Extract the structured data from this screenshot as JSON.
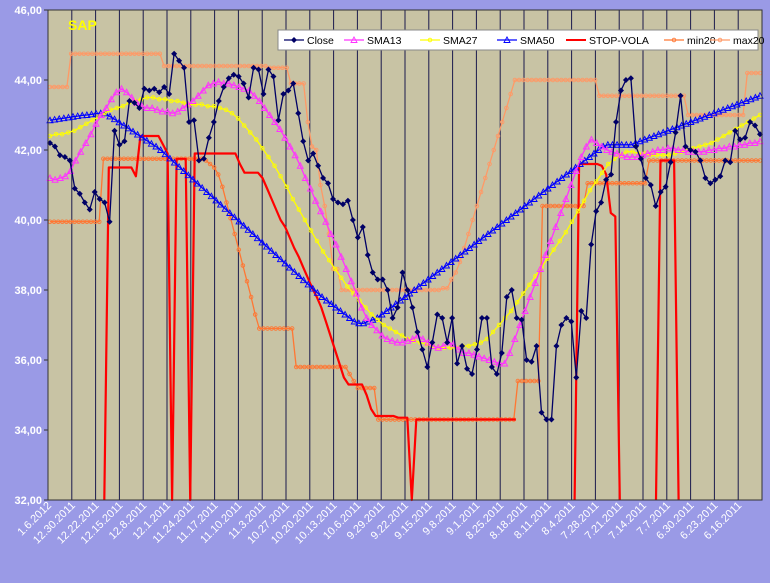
{
  "chart_data": {
    "type": "line",
    "title": "SAP",
    "ylim": [
      32,
      46
    ],
    "yticks": [
      32,
      34,
      36,
      38,
      40,
      42,
      44,
      46
    ],
    "ytick_labels": [
      "32,00",
      "34,00",
      "36,00",
      "38,00",
      "40,00",
      "42,00",
      "44,00",
      "46,00"
    ],
    "x_tick_labels": [
      "1.6.2012",
      "12.30.2011",
      "12.22.2011",
      "12.15.2011",
      "12.8.2011",
      "12.1.2011",
      "11.24.2011",
      "11.17.2011",
      "11.10.2011",
      "11.3.2011",
      "10.27.2011",
      "10.20.2011",
      "10.13.2011",
      "10.6.2011",
      "9.29.2011",
      "9.22.2011",
      "9.15.2011",
      "9.8.2011",
      "9.1.2011",
      "8.25.2011",
      "8.18.2011",
      "8.11.2011",
      "8.4.2011",
      "7.28.2011",
      "7.21.2011",
      "7.14.2011",
      "7.7.2011",
      "6.30.2011",
      "6.23.2011",
      "6.16.2011"
    ],
    "x_note": "x axis runs in reverse chronological order (newest date on the left); points are trading days indexed left to right",
    "grid": "vertical lines at each date tick",
    "legend_position": "top-right",
    "colors": {
      "plot_background": "#c8c3a4",
      "page_background": "#9a9ae6",
      "title": "#ffff00"
    },
    "series": [
      {
        "name": "Close",
        "color": "#000066",
        "marker": "diamond",
        "values": [
          42.2,
          42.1,
          41.85,
          41.8,
          41.7,
          40.9,
          40.75,
          40.5,
          40.3,
          40.8,
          40.6,
          40.5,
          39.95,
          42.55,
          42.15,
          42.25,
          43.4,
          43.35,
          43.2,
          43.75,
          43.7,
          43.75,
          43.65,
          43.8,
          43.6,
          44.75,
          44.55,
          44.35,
          42.8,
          42.85,
          41.7,
          41.75,
          42.35,
          42.8,
          43.4,
          43.8,
          44.05,
          44.15,
          44.1,
          43.9,
          43.5,
          44.35,
          44.3,
          43.6,
          44.3,
          44.1,
          42.85,
          43.6,
          43.7,
          43.9,
          43.05,
          42.25,
          41.7,
          41.9,
          41.55,
          41.2,
          41.05,
          40.6,
          40.5,
          40.45,
          40.55,
          40.0,
          39.5,
          39.8,
          39.0,
          38.5,
          38.3,
          38.3,
          38.0,
          37.2,
          37.5,
          38.5,
          38.0,
          37.5,
          36.8,
          36.3,
          35.8,
          36.5,
          37.3,
          37.2,
          36.5,
          37.2,
          35.9,
          36.4,
          35.75,
          35.6,
          36.3,
          37.2,
          37.2,
          35.8,
          35.6,
          36.2,
          37.8,
          38.0,
          37.2,
          37.15,
          36.0,
          35.95,
          36.4,
          34.5,
          34.3,
          34.3,
          36.4,
          37.0,
          37.2,
          37.1,
          35.5,
          37.4,
          37.2,
          39.3,
          40.25,
          40.5,
          41.15,
          41.3,
          42.8,
          43.7,
          44.0,
          44.05,
          42.1,
          41.75,
          41.2,
          41.0,
          40.4,
          40.8,
          40.95,
          41.65,
          42.5,
          43.55,
          42.1,
          42.0,
          41.95,
          41.7,
          41.2,
          41.05,
          41.15,
          41.25,
          41.7,
          41.65,
          42.55,
          42.3,
          42.35,
          42.8,
          42.7,
          42.45
        ]
      },
      {
        "name": "SMA13",
        "color": "#ff33ff",
        "marker": "triangle",
        "values": [
          41.2,
          41.15,
          41.2,
          41.25,
          41.4,
          41.7,
          41.95,
          42.2,
          42.45,
          42.75,
          43.0,
          43.2,
          43.45,
          43.65,
          43.75,
          43.65,
          43.5,
          43.35,
          43.25,
          43.2,
          43.2,
          43.15,
          43.1,
          43.1,
          43.05,
          43.1,
          43.2,
          43.3,
          43.4,
          43.55,
          43.7,
          43.85,
          43.9,
          43.95,
          43.9,
          43.9,
          43.85,
          43.8,
          43.75,
          43.7,
          43.55,
          43.4,
          43.2,
          43.0,
          42.8,
          42.6,
          42.35,
          42.1,
          41.85,
          41.55,
          41.2,
          40.9,
          40.55,
          40.25,
          39.95,
          39.6,
          39.3,
          38.95,
          38.6,
          38.25,
          37.9,
          37.5,
          37.2,
          37.0,
          36.85,
          36.7,
          36.6,
          36.55,
          36.5,
          36.5,
          36.55,
          36.6,
          36.7,
          36.6,
          36.5,
          36.4,
          36.35,
          36.4,
          36.5,
          36.45,
          36.3,
          36.2,
          36.2,
          36.15,
          36.1,
          36.05,
          36.0,
          35.95,
          35.9,
          35.9,
          36.2,
          36.6,
          37.0,
          37.4,
          37.8,
          38.2,
          38.6,
          39.0,
          39.4,
          39.8,
          40.2,
          40.6,
          41.0,
          41.4,
          41.8,
          42.1,
          42.3,
          42.2,
          42.1,
          42.0,
          41.95,
          41.9,
          41.85,
          41.8,
          41.8,
          41.8,
          41.85,
          41.9,
          41.95,
          42.0,
          42.0,
          42.05,
          42.05,
          42.0,
          42.0,
          41.95,
          41.95,
          41.95,
          41.95,
          42.0,
          42.0,
          42.05,
          42.05,
          42.1,
          42.1,
          42.15,
          42.15,
          42.2,
          42.2,
          42.25
        ]
      },
      {
        "name": "SMA27",
        "color": "#ffff00",
        "marker": "circle",
        "values": [
          42.4,
          42.45,
          42.45,
          42.5,
          42.55,
          42.65,
          42.75,
          42.85,
          42.95,
          43.05,
          43.15,
          43.2,
          43.25,
          43.35,
          43.4,
          43.45,
          43.5,
          43.5,
          43.45,
          43.45,
          43.4,
          43.4,
          43.35,
          43.3,
          43.3,
          43.3,
          43.25,
          43.25,
          43.2,
          43.15,
          43.05,
          42.9,
          42.7,
          42.5,
          42.3,
          42.05,
          41.8,
          41.55,
          41.25,
          40.95,
          40.6,
          40.3,
          40.0,
          39.7,
          39.4,
          39.1,
          38.85,
          38.6,
          38.35,
          38.1,
          37.9,
          37.7,
          37.5,
          37.3,
          37.15,
          37.0,
          36.9,
          36.8,
          36.7,
          36.6,
          36.55,
          36.5,
          36.45,
          36.4,
          36.35,
          36.35,
          36.35,
          36.35,
          36.4,
          36.4,
          36.45,
          36.5,
          36.6,
          36.8,
          37.0,
          37.2,
          37.4,
          37.65,
          37.9,
          38.15,
          38.4,
          38.65,
          38.9,
          39.15,
          39.4,
          39.65,
          39.95,
          40.25,
          40.55,
          40.85,
          41.1,
          41.35,
          41.6,
          41.75,
          41.85,
          41.95,
          41.95,
          41.9,
          41.9,
          41.85,
          41.85,
          41.85,
          41.85,
          41.9,
          41.95,
          42.0,
          42.05,
          42.1,
          42.15,
          42.2,
          42.3,
          42.4,
          42.5,
          42.6,
          42.7,
          42.8,
          42.9,
          43.0
        ]
      },
      {
        "name": "SMA50",
        "color": "#0000ff",
        "marker": "triangle",
        "values": [
          42.85,
          42.87,
          42.89,
          42.91,
          42.93,
          42.95,
          42.97,
          42.99,
          43.0,
          43.02,
          43.04,
          43.05,
          43.05,
          42.96,
          42.88,
          42.79,
          42.7,
          42.62,
          42.53,
          42.44,
          42.36,
          42.27,
          42.18,
          42.1,
          42.0,
          41.88,
          41.76,
          41.64,
          41.52,
          41.4,
          41.28,
          41.16,
          41.04,
          40.92,
          40.8,
          40.68,
          40.56,
          40.44,
          40.32,
          40.2,
          40.08,
          39.96,
          39.84,
          39.72,
          39.6,
          39.48,
          39.36,
          39.24,
          39.12,
          39.0,
          38.88,
          38.76,
          38.64,
          38.52,
          38.4,
          38.28,
          38.16,
          38.04,
          37.92,
          37.8,
          37.7,
          37.6,
          37.5,
          37.4,
          37.3,
          37.2,
          37.1,
          37.05,
          37.05,
          37.1,
          37.15,
          37.2,
          37.3,
          37.4,
          37.5,
          37.6,
          37.7,
          37.8,
          37.9,
          38.0,
          38.1,
          38.2,
          38.3,
          38.4,
          38.5,
          38.6,
          38.7,
          38.8,
          38.9,
          39.0,
          39.1,
          39.2,
          39.3,
          39.4,
          39.5,
          39.6,
          39.7,
          39.8,
          39.9,
          40.0,
          40.1,
          40.2,
          40.3,
          40.4,
          40.5,
          40.6,
          40.7,
          40.8,
          40.9,
          41.0,
          41.1,
          41.2,
          41.3,
          41.4,
          41.5,
          41.6,
          41.7,
          41.8,
          41.9,
          42.0,
          42.1,
          42.15,
          42.15,
          42.15,
          42.15,
          42.15,
          42.15,
          42.2,
          42.25,
          42.3,
          42.35,
          42.4,
          42.45,
          42.5,
          42.55,
          42.6,
          42.65,
          42.7,
          42.75,
          42.8,
          42.85,
          42.9,
          42.95,
          43.0,
          43.05,
          43.1,
          43.15,
          43.2,
          43.25,
          43.3,
          43.35,
          43.4,
          43.45,
          43.5,
          43.55
        ]
      },
      {
        "name": "STOP-VOLA",
        "color": "#ff0000",
        "marker": "none",
        "values": [
          null,
          null,
          null,
          null,
          null,
          null,
          null,
          null,
          null,
          null,
          null,
          null,
          32,
          41.5,
          41.5,
          41.5,
          41.5,
          41.5,
          41.5,
          41.25,
          42.4,
          42.4,
          42.4,
          42.4,
          42.4,
          42.15,
          41.9,
          32,
          41.75,
          41.75,
          41.75,
          32,
          41.9,
          41.9,
          41.9,
          41.9,
          41.9,
          41.9,
          41.9,
          41.9,
          41.9,
          41.9,
          41.6,
          41.35,
          41.35,
          41.35,
          41.35,
          41.2,
          40.9,
          40.6,
          40.3,
          40.0,
          39.8,
          39.5,
          39.2,
          38.95,
          38.65,
          38.35,
          38.05,
          37.8,
          37.5,
          37.1,
          36.7,
          36.3,
          35.9,
          35.5,
          35.3,
          35.3,
          35.3,
          35.3,
          35.0,
          34.6,
          34.4,
          34.4,
          34.4,
          34.4,
          34.4,
          34.35,
          34.35,
          34.35,
          32,
          34.3,
          34.3,
          34.3,
          34.3,
          34.3,
          34.3,
          34.3,
          34.3,
          34.3,
          34.3,
          34.3,
          34.3,
          34.3,
          34.3,
          34.3,
          34.3,
          34.3,
          34.3,
          34.3,
          34.3,
          34.3,
          34.3,
          34.3,
          null,
          null,
          null,
          null,
          null,
          null,
          null,
          null,
          null,
          null,
          null,
          null,
          32,
          41.6,
          41.6,
          41.6,
          41.6,
          41.6,
          41.55,
          41.3,
          40.2,
          40.1,
          32,
          null,
          null,
          null,
          null,
          null,
          null,
          null,
          32,
          41.7,
          41.7,
          41.7,
          41.7,
          32,
          null,
          null,
          null,
          null,
          null,
          null,
          null,
          null,
          null,
          null,
          null,
          null,
          null,
          null,
          null,
          null,
          null,
          null
        ]
      },
      {
        "name": "min20",
        "color": "#ff7733",
        "marker": "circle",
        "values": [
          39.95,
          39.95,
          39.95,
          39.95,
          39.95,
          39.95,
          39.95,
          39.95,
          39.95,
          39.95,
          39.95,
          39.95,
          39.95,
          41.75,
          41.75,
          41.75,
          41.75,
          41.75,
          41.75,
          41.75,
          41.75,
          41.75,
          41.75,
          41.75,
          41.75,
          41.75,
          41.75,
          41.75,
          41.75,
          41.75,
          41.75,
          41.75,
          41.75,
          41.75,
          41.75,
          41.75,
          41.75,
          41.75,
          41.7,
          41.6,
          41.5,
          41.3,
          40.95,
          40.5,
          40.05,
          39.6,
          39.15,
          38.7,
          38.25,
          37.8,
          37.3,
          36.9,
          36.9,
          36.9,
          36.9,
          36.9,
          36.9,
          36.9,
          36.9,
          36.9,
          35.8,
          35.8,
          35.8,
          35.8,
          35.8,
          35.8,
          35.8,
          35.8,
          35.8,
          35.8,
          35.8,
          35.8,
          35.8,
          35.6,
          35.4,
          35.2,
          35.2,
          35.2,
          35.2,
          35.2,
          34.3,
          34.3,
          34.3,
          34.3,
          34.3,
          34.3,
          34.3,
          34.3,
          34.3,
          34.3,
          34.3,
          34.3,
          34.3,
          34.3,
          34.3,
          34.3,
          34.3,
          34.3,
          34.3,
          34.3,
          34.3,
          34.3,
          34.3,
          34.3,
          34.3,
          34.3,
          34.3,
          34.3,
          34.3,
          34.3,
          34.3,
          34.3,
          34.3,
          34.3,
          35.4,
          35.4,
          35.4,
          35.4,
          35.4,
          35.4,
          40.4,
          40.4,
          40.4,
          40.4,
          40.4,
          40.4,
          40.4,
          40.4,
          40.4,
          40.4,
          40.4,
          41.05,
          41.05,
          41.05,
          41.05,
          41.05,
          41.05,
          41.05,
          41.05,
          41.05,
          41.05,
          41.05,
          41.05,
          41.05,
          41.05,
          41.05,
          41.7,
          41.7,
          41.7,
          41.7,
          41.7,
          41.7,
          41.7,
          41.7,
          41.7,
          41.7,
          41.7,
          41.7,
          41.7,
          41.7,
          41.7,
          41.7,
          41.7,
          41.7,
          41.7,
          41.7,
          41.7,
          41.7,
          41.7,
          41.7,
          41.7,
          41.7,
          41.7,
          41.7
        ]
      },
      {
        "name": "max20",
        "color": "#ff9966",
        "marker": "circle",
        "values": [
          43.8,
          43.8,
          43.8,
          43.8,
          43.8,
          44.75,
          44.75,
          44.75,
          44.75,
          44.75,
          44.75,
          44.75,
          44.75,
          44.75,
          44.75,
          44.75,
          44.75,
          44.75,
          44.75,
          44.75,
          44.75,
          44.75,
          44.75,
          44.75,
          44.75,
          44.75,
          44.75,
          44.4,
          44.4,
          44.4,
          44.4,
          44.4,
          44.4,
          44.4,
          44.4,
          44.4,
          44.4,
          44.4,
          44.4,
          44.4,
          44.4,
          44.4,
          44.4,
          44.4,
          44.4,
          44.4,
          44.4,
          44.4,
          44.4,
          44.4,
          44.4,
          44.4,
          44.35,
          44.35,
          44.35,
          44.35,
          44.35,
          43.9,
          43.9,
          43.9,
          43.9,
          42.8,
          42.1,
          42.0,
          41.0,
          40.4,
          39.6,
          38.6,
          38.6,
          38.0,
          38.0,
          38.0,
          38.0,
          38.0,
          38.0,
          38.0,
          38.0,
          38.0,
          38.0,
          38.0,
          38.0,
          38.0,
          38.0,
          38.0,
          38.0,
          38.0,
          38.0,
          38.0,
          38.0,
          38.0,
          38.0,
          38.0,
          38.0,
          38.05,
          38.05,
          38.3,
          38.5,
          38.8,
          39.2,
          39.6,
          40.0,
          40.4,
          40.8,
          41.2,
          41.6,
          42.0,
          42.4,
          42.8,
          43.2,
          43.6,
          44.0,
          44.0,
          44.0,
          44.0,
          44.0,
          44.0,
          44.0,
          44.0,
          44.0,
          44.0,
          44.0,
          44.0,
          44.0,
          44.0,
          44.0,
          44.0,
          44.0,
          44.0,
          44.0,
          44.0,
          43.55,
          43.55,
          43.55,
          43.55,
          43.55,
          43.55,
          43.55,
          43.55,
          43.55,
          43.55,
          43.55,
          43.55,
          43.55,
          43.55,
          43.55,
          43.55,
          43.55,
          43.55,
          43.55,
          43.55,
          43.55,
          43.0,
          43.0,
          43.0,
          43.0,
          43.0,
          43.0,
          43.0,
          43.0,
          43.0,
          43.0,
          43.0,
          43.0,
          43.0,
          43.0,
          44.2,
          44.2,
          44.2,
          44.2
        ]
      }
    ]
  }
}
